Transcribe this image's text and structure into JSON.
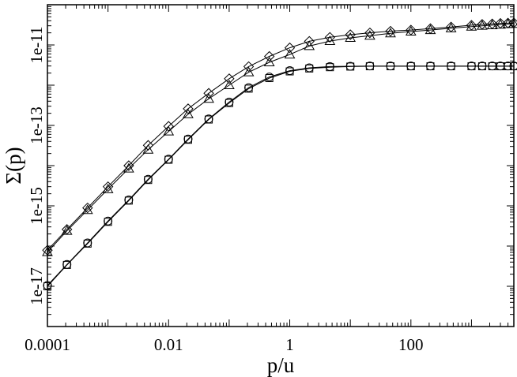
{
  "chart_data": {
    "type": "line",
    "xlabel": "p/u",
    "ylabel": "Σ(p)",
    "xscale": "log",
    "yscale": "log",
    "xlim": [
      0.0001,
      5000
    ],
    "ylim": [
      1e-18,
      1e-10
    ],
    "grid": false,
    "x_ticks": [
      {
        "value": 0.0001,
        "label": "0.0001"
      },
      {
        "value": 0.01,
        "label": "0.01"
      },
      {
        "value": 1,
        "label": "1"
      },
      {
        "value": 100,
        "label": "100"
      }
    ],
    "y_ticks": [
      {
        "value": 1e-17,
        "label": "1e-17"
      },
      {
        "value": 1e-15,
        "label": "1e-15"
      },
      {
        "value": 1e-13,
        "label": "1e-13"
      },
      {
        "value": 1e-11,
        "label": "1e-11"
      }
    ],
    "x": [
      0.0001,
      0.00021,
      0.00046,
      0.001,
      0.0022,
      0.0046,
      0.01,
      0.021,
      0.046,
      0.1,
      0.21,
      0.46,
      1,
      2.1,
      4.6,
      10,
      21,
      46,
      100,
      210,
      460,
      1000,
      1500,
      2200,
      3000,
      4000,
      5000
    ],
    "series": [
      {
        "marker": "diamond",
        "values": [
          7.9e-17,
          2.6e-16,
          8.9e-16,
          3e-15,
          1e-14,
          3.2e-14,
          9.5e-14,
          2.6e-13,
          6.3e-13,
          1.45e-12,
          2.9e-12,
          5.2e-12,
          8.5e-12,
          1.23e-11,
          1.55e-11,
          1.8e-11,
          2e-11,
          2.2e-11,
          2.35e-11,
          2.55e-11,
          2.8e-11,
          3.1e-11,
          3.25e-11,
          3.35e-11,
          3.45e-11,
          3.5e-11,
          3.55e-11
        ]
      },
      {
        "marker": "triangle",
        "values": [
          7.1e-17,
          2.4e-16,
          7.9e-16,
          2.6e-15,
          8.5e-15,
          2.5e-14,
          7.1e-14,
          1.9e-13,
          4.6e-13,
          1e-12,
          2.1e-12,
          3.7e-12,
          5.8e-12,
          9.4e-12,
          1.25e-11,
          1.5e-11,
          1.7e-11,
          1.95e-11,
          2.15e-11,
          2.35e-11,
          2.6e-11,
          2.85e-11,
          3e-11,
          3.1e-11,
          3.2e-11,
          3.3e-11,
          3.35e-11
        ]
      },
      {
        "marker": "circle",
        "values": [
          1.05e-17,
          3.5e-17,
          1.2e-16,
          4.2e-16,
          1.4e-15,
          4.6e-15,
          1.45e-14,
          4.6e-14,
          1.45e-13,
          3.8e-13,
          8.7e-13,
          1.6e-12,
          2.3e-12,
          2.7e-12,
          2.9e-12,
          2.95e-12,
          3e-12,
          3e-12,
          3e-12,
          3e-12,
          3e-12,
          3e-12,
          3e-12,
          3e-12,
          3e-12,
          3e-12,
          3e-12
        ]
      },
      {
        "marker": "square",
        "values": [
          1e-17,
          3.4e-17,
          1.15e-16,
          4e-16,
          1.35e-15,
          4.4e-15,
          1.4e-14,
          4.4e-14,
          1.4e-13,
          3.6e-13,
          8.2e-13,
          1.5e-12,
          2.2e-12,
          2.6e-12,
          2.8e-12,
          2.9e-12,
          2.95e-12,
          2.95e-12,
          2.95e-12,
          2.95e-12,
          2.95e-12,
          2.95e-12,
          2.95e-12,
          2.95e-12,
          2.95e-12,
          2.95e-12,
          2.95e-12
        ]
      }
    ]
  }
}
